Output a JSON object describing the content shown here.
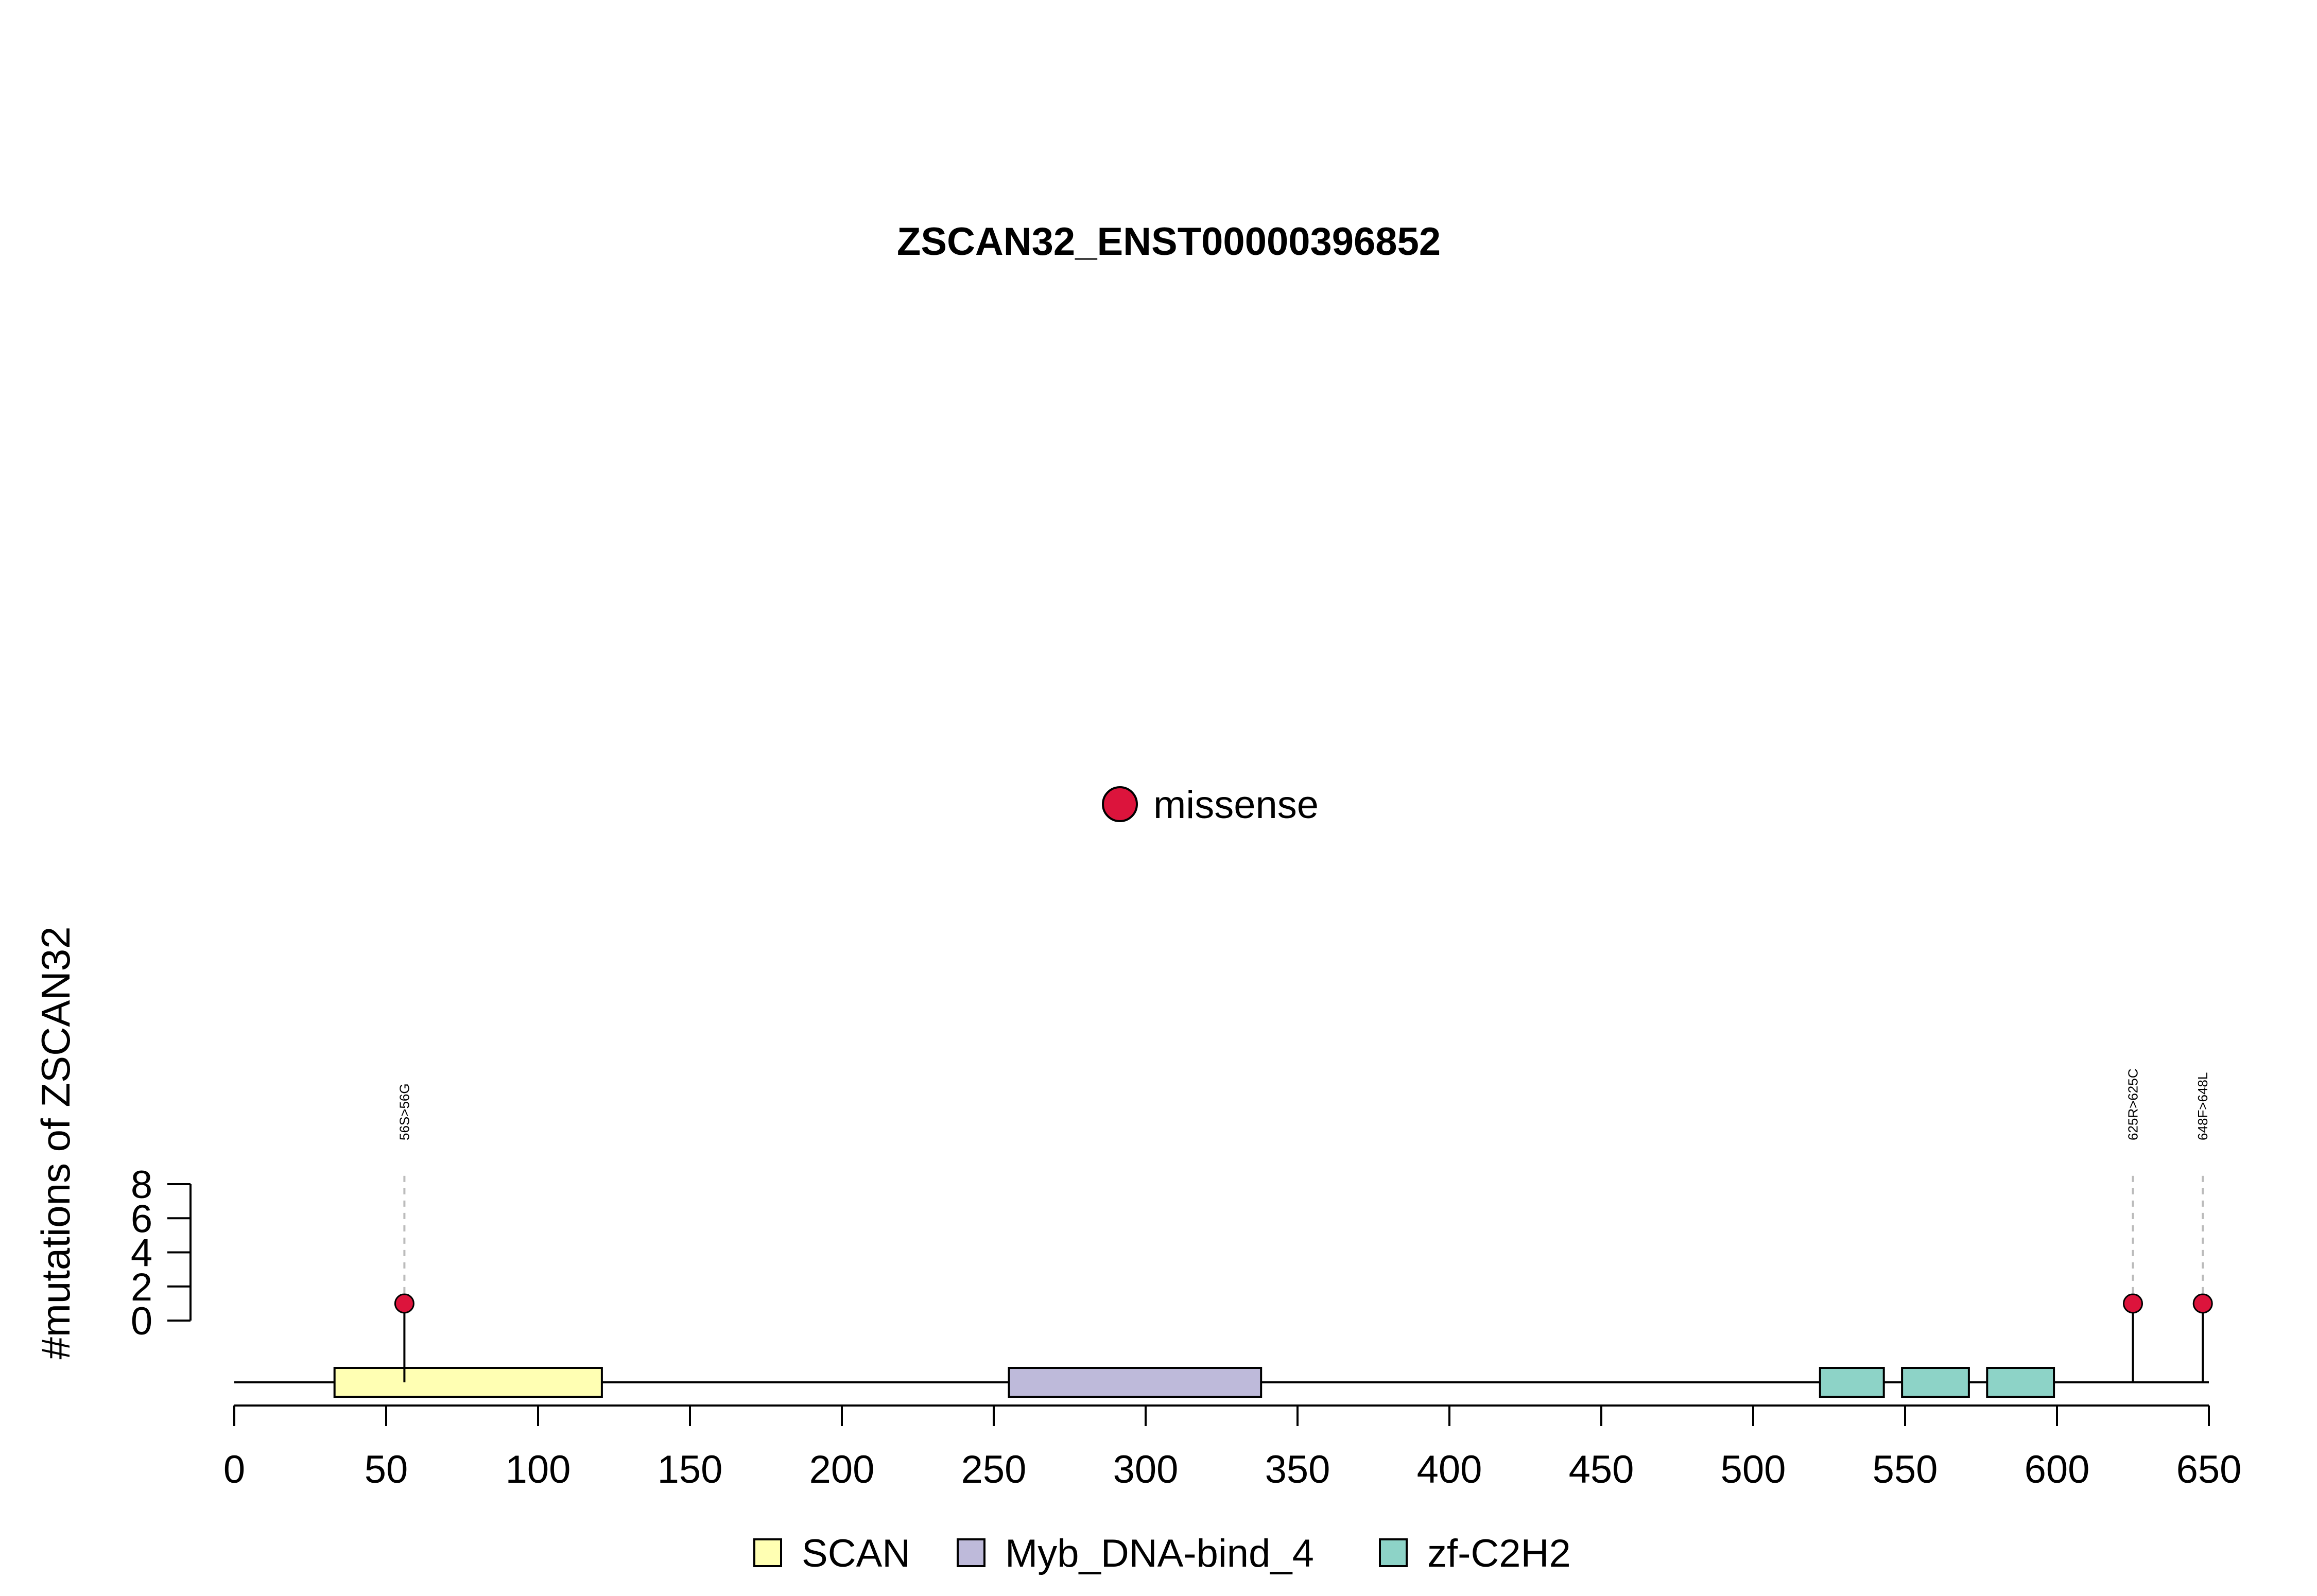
{
  "chart_data": {
    "type": "lollipop",
    "title": "ZSCAN32_ENST00000396852",
    "ylabel": "#mutations of ZSCAN32",
    "xlabel": "",
    "protein_length": 650,
    "xlim": [
      0,
      650
    ],
    "x_ticks": [
      0,
      50,
      100,
      150,
      200,
      250,
      300,
      350,
      400,
      450,
      500,
      550,
      600,
      650
    ],
    "x_tick_labels": [
      "0",
      "50",
      "100",
      "150",
      "200",
      "250",
      "300",
      "350",
      "400",
      "450",
      "500",
      "550",
      "600",
      "650"
    ],
    "ylim": [
      0,
      8
    ],
    "y_ticks": [
      0,
      2,
      4,
      6,
      8
    ],
    "y_tick_labels": [
      "0",
      "2",
      "4",
      "6",
      "8"
    ],
    "domains": [
      {
        "name": "SCAN",
        "start": 33,
        "end": 121,
        "color": "#FFFFB3"
      },
      {
        "name": "Myb_DNA-bind_4",
        "start": 255,
        "end": 338,
        "color": "#BEBADA"
      },
      {
        "name": "zf-C2H2",
        "start": 522,
        "end": 543,
        "color": "#8DD3C7"
      },
      {
        "name": "zf-C2H2",
        "start": 549,
        "end": 571,
        "color": "#8DD3C7"
      },
      {
        "name": "zf-C2H2",
        "start": 577,
        "end": 599,
        "color": "#8DD3C7"
      }
    ],
    "domain_legend": [
      {
        "name": "SCAN",
        "color": "#FFFFB3"
      },
      {
        "name": "Myb_DNA-bind_4",
        "color": "#BEBADA"
      },
      {
        "name": "zf-C2H2",
        "color": "#8DD3C7"
      }
    ],
    "mutation_legend": [
      {
        "name": "missense",
        "color": "#DC143C"
      }
    ],
    "mutations": [
      {
        "position": 56,
        "count": 1,
        "label": "56S>56G",
        "type": "missense"
      },
      {
        "position": 625,
        "count": 1,
        "label": "625R>625C",
        "type": "missense"
      },
      {
        "position": 648,
        "count": 1,
        "label": "648F>648L",
        "type": "missense"
      }
    ],
    "grid": false,
    "legend_placement": "mutation legend top-center, domain legend bottom-center"
  }
}
